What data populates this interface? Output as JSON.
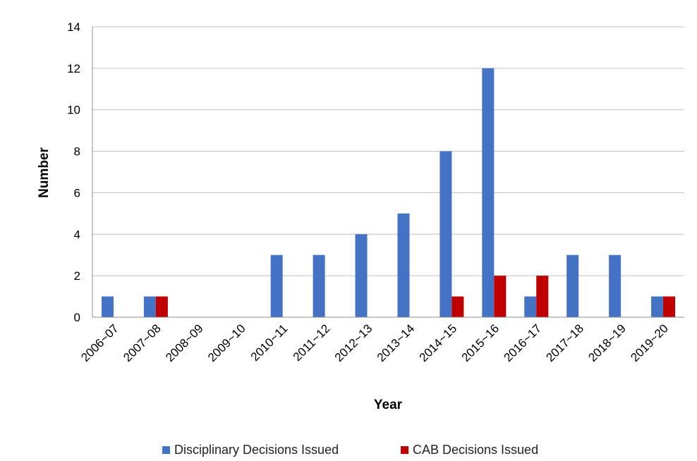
{
  "chart_data": {
    "type": "bar",
    "title": "",
    "xlabel": "Year",
    "ylabel": "Number",
    "ylim": [
      0,
      14
    ],
    "yticks": [
      0,
      2,
      4,
      6,
      8,
      10,
      12,
      14
    ],
    "grid": true,
    "legend_position": "bottom",
    "categories": [
      "2006~07",
      "2007~08",
      "2008~09",
      "2009~10",
      "2010~11",
      "2011~12",
      "2012~13",
      "2013~14",
      "2014~15",
      "2015~16",
      "2016~17",
      "2017~18",
      "2018~19",
      "2019~20"
    ],
    "series": [
      {
        "name": "Disciplinary Decisions Issued",
        "color": "#4472C4",
        "values": [
          1,
          1,
          0,
          0,
          3,
          3,
          4,
          5,
          8,
          12,
          1,
          3,
          3,
          1
        ]
      },
      {
        "name": "CAB Decisions Issued",
        "color": "#C00000",
        "values": [
          0,
          1,
          0,
          0,
          0,
          0,
          0,
          0,
          1,
          2,
          2,
          0,
          0,
          1
        ]
      }
    ]
  }
}
